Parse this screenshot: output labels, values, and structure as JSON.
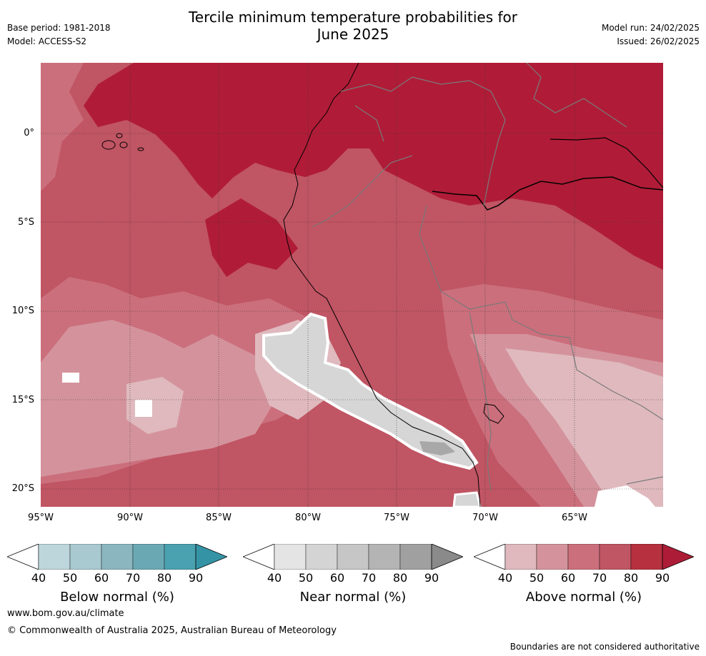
{
  "header": {
    "title_line1": "Tercile minimum temperature probabilities for",
    "title_line2": "June 2025",
    "base_period": "Base period: 1981-2018",
    "model": "Model: ACCESS-S2",
    "model_run": "Model run: 24/02/2025",
    "issued": "Issued: 26/02/2025"
  },
  "map": {
    "lat_labels": [
      "0°",
      "5°S",
      "10°S",
      "15°S",
      "20°S"
    ],
    "lon_labels": [
      "95°W",
      "90°W",
      "85°W",
      "80°W",
      "75°W",
      "70°W",
      "65°W"
    ]
  },
  "legends": [
    {
      "label": "Below normal (%)",
      "ticks": [
        "40",
        "50",
        "60",
        "70",
        "80",
        "90"
      ],
      "colors": [
        "#ffffff",
        "#bdd6dc",
        "#a8c9cf",
        "#8bb6c0",
        "#6aa9b4",
        "#4aa1b0",
        "#3494a6"
      ]
    },
    {
      "label": "Near normal (%)",
      "ticks": [
        "40",
        "50",
        "60",
        "70",
        "80",
        "90"
      ],
      "colors": [
        "#ffffff",
        "#e4e4e4",
        "#d4d4d4",
        "#c6c6c6",
        "#b4b4b4",
        "#a0a0a0",
        "#8a8a8a"
      ]
    },
    {
      "label": "Above normal (%)",
      "ticks": [
        "40",
        "50",
        "60",
        "70",
        "80",
        "90"
      ],
      "colors": [
        "#ffffff",
        "#dfb9be",
        "#d4939c",
        "#cb6f7c",
        "#c05563",
        "#b7303f",
        "#ad1c36"
      ]
    }
  ],
  "footer": {
    "url": "www.bom.gov.au/climate",
    "copyright": "© Commonwealth of Australia 2025, Australian Bureau of Meteorology",
    "disclaimer": "Boundaries are not considered authoritative"
  }
}
